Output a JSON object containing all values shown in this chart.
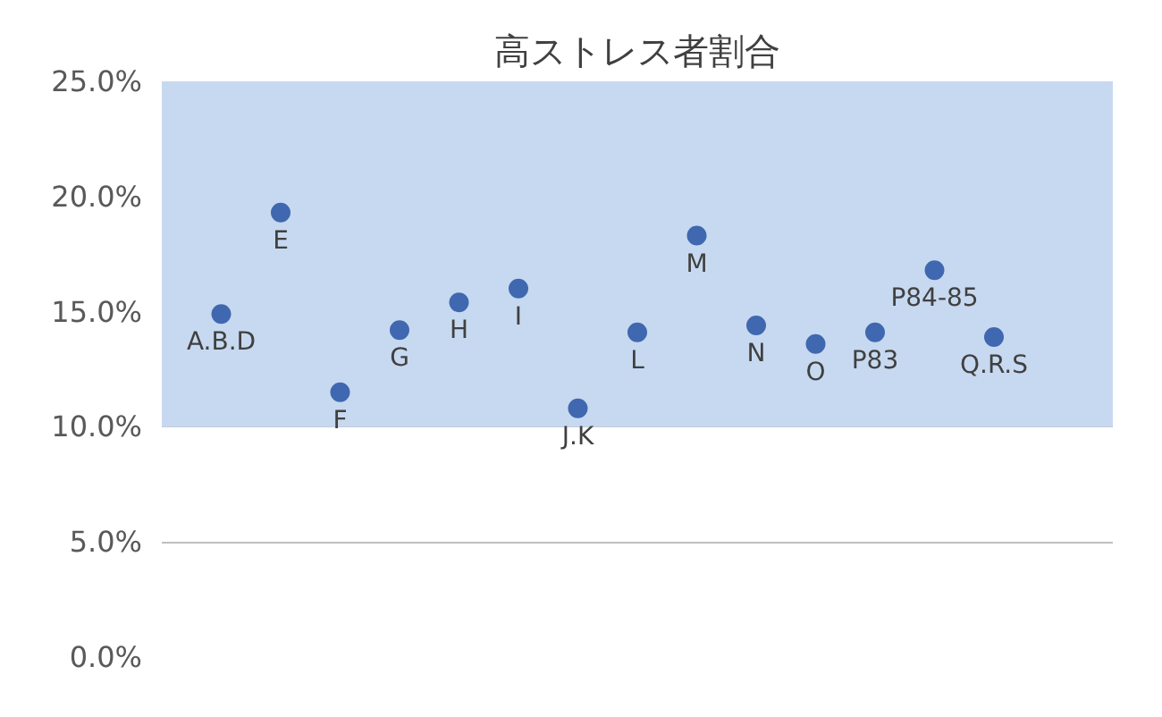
{
  "chart_data": {
    "type": "scatter",
    "title": "高ストレス者割合",
    "categories": [
      "A.B.D",
      "E",
      "F",
      "G",
      "H",
      "I",
      "J.K",
      "L",
      "M",
      "N",
      "O",
      "P83",
      "P84-85",
      "Q.R.S"
    ],
    "series": [
      {
        "color": "#4068b0",
        "values": [
          14.9,
          19.3,
          11.5,
          14.2,
          15.4,
          16.0,
          10.8,
          14.1,
          18.3,
          14.4,
          13.6,
          14.1,
          16.8,
          13.9
        ]
      }
    ],
    "ylim": [
      0,
      25
    ],
    "yticks": [
      {
        "value": 0,
        "label": "0.0%"
      },
      {
        "value": 5,
        "label": "5.0%"
      },
      {
        "value": 10,
        "label": "10.0%"
      },
      {
        "value": 15,
        "label": "15.0%"
      },
      {
        "value": 20,
        "label": "20.0%"
      },
      {
        "value": 25,
        "label": "25.0%"
      }
    ],
    "bands": [
      {
        "axis": "y",
        "from": 10,
        "to": 25,
        "color": "#c7d9f0"
      }
    ],
    "grid": "y",
    "marker": "circle",
    "tick_labels": "y"
  }
}
